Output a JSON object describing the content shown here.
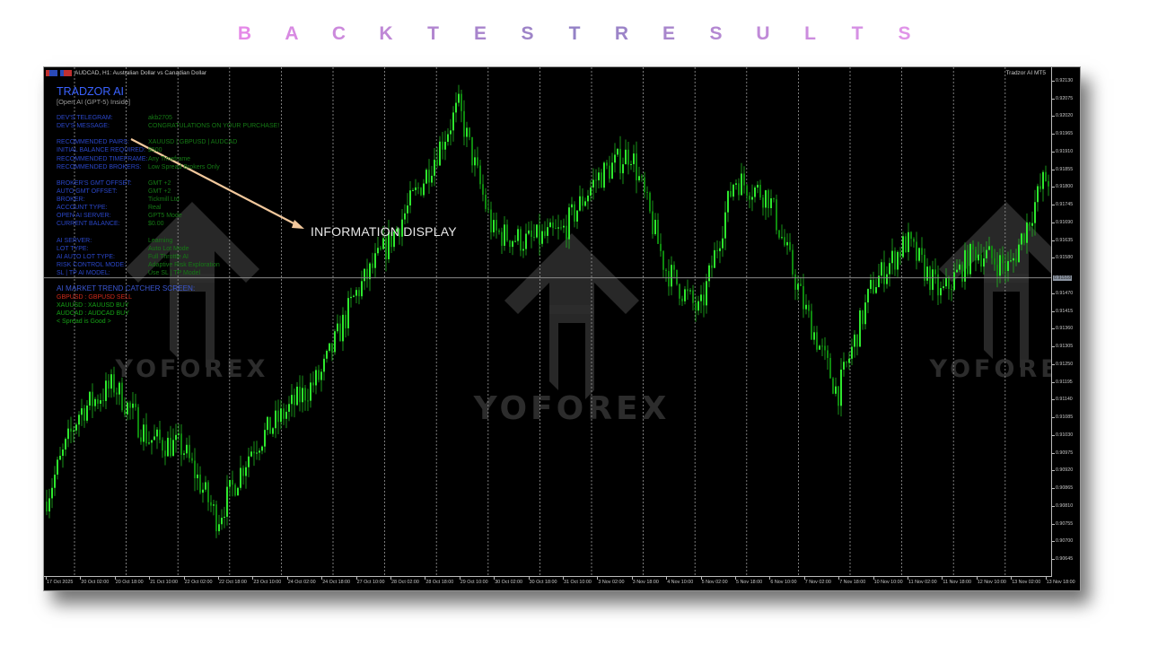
{
  "banner": {
    "letters": [
      "B",
      "A",
      "C",
      "K",
      "T",
      "E",
      "S",
      "T",
      "R",
      "E",
      "S",
      "U",
      "L",
      "T",
      "S"
    ],
    "colors": [
      "#e58ae8",
      "#d88ae2",
      "#cc8adc",
      "#bf88d6",
      "#b286d0",
      "#a884cc",
      "#9e84c8",
      "#9482c6",
      "#9c84c8",
      "#a886cc",
      "#b488d2",
      "#c08ad8",
      "#cc8cde",
      "#d690e4",
      "#e094e8"
    ]
  },
  "window": {
    "symbol_title": "AUDCAD, H1:  Australian Dollar vs Canadian Dollar",
    "ea_name": "Tradzor AI MT5"
  },
  "info_panel": {
    "title": "TRADZOR AI",
    "subtitle": "[Open AI (GPT-5) Inside]",
    "groups": [
      [
        {
          "k": "DEV'S TELEGRAM:",
          "v": "akb2705"
        },
        {
          "k": "DEV'S MESSAGE:",
          "v": "CONGRATULATIONS ON YOUR PURCHASE!"
        }
      ],
      [
        {
          "k": "RECOMMENDED PAIRS:",
          "v": "XAUUSD | GBPUSD | AUDCAD"
        },
        {
          "k": "INITIAL BALANCE REQUIRED:",
          "v": "$500"
        },
        {
          "k": "RECOMMENDED TIMEFRAME:",
          "v": "Any Timeframe"
        },
        {
          "k": "RECOMMENDED BROKERS:",
          "v": "Low Spread Brokers Only"
        }
      ],
      [
        {
          "k": "BROKER'S GMT OFFSET:",
          "v": "GMT +2"
        },
        {
          "k": "AUTO GMT OFFSET:",
          "v": "GMT +2"
        },
        {
          "k": "BROKER:",
          "v": "Tickmill Ltd"
        },
        {
          "k": "ACCOUNT TYPE:",
          "v": "Real"
        },
        {
          "k": "OPEN AI SERVER:",
          "v": "GPT5 Mode"
        },
        {
          "k": "CURRENT BALANCE:",
          "v": "$0.00"
        }
      ],
      [
        {
          "k": "AI SERVER:",
          "v": "Learning"
        },
        {
          "k": "LOT TYPE:",
          "v": "Auto Lot Mode"
        },
        {
          "k": "AI AUTO LOT TYPE:",
          "v": "Full Throttle AI"
        },
        {
          "k": "RISK CONTROL MODE:",
          "v": "Adaptive Risk Exploration"
        },
        {
          "k": "SL | TP AI MODEL:",
          "v": "Use SL | TP Model"
        }
      ]
    ],
    "trend_title": "AI MARKET TREND CATCHER SCREEN:",
    "trend_rows": [
      {
        "text": "GBPUSD : GBPUSD SELL",
        "color": "#d02a1a"
      },
      {
        "text": "XAUUSD : XAUUSD BUY",
        "color": "#16a016"
      },
      {
        "text": "AUDCAD : AUDCAD BUY",
        "color": "#16a016"
      },
      {
        "text": "< Spread is Good >",
        "color": "#16a016"
      }
    ]
  },
  "annotation": {
    "label": "INFORMATION DISPLAY",
    "arrow_color": "#f2c89c"
  },
  "watermark": {
    "text": "YOFOREX"
  },
  "chart_data": {
    "type": "candlestick",
    "symbol": "AUDCAD",
    "timeframe": "H1",
    "current_price": "0.91518",
    "bull_color": "#22e022",
    "grid": "vertical-dashed",
    "y_ticks": [
      "0.92130",
      "0.92075",
      "0.92020",
      "0.91965",
      "0.91910",
      "0.91855",
      "0.91800",
      "0.91745",
      "0.91690",
      "0.91635",
      "0.91580",
      "0.91470",
      "0.91415",
      "0.91360",
      "0.91305",
      "0.91250",
      "0.91195",
      "0.91140",
      "0.91085",
      "0.91030",
      "0.90975",
      "0.90920",
      "0.90865",
      "0.90810",
      "0.90755",
      "0.90700",
      "0.90645"
    ],
    "ylim": [
      0.9059,
      0.9216
    ],
    "x_ticks": [
      "17 Oct 2025",
      "20 Oct 02:00",
      "20 Oct 18:00",
      "21 Oct 10:00",
      "22 Oct 02:00",
      "22 Oct 18:00",
      "23 Oct 10:00",
      "24 Oct 02:00",
      "24 Oct 18:00",
      "27 Oct 10:00",
      "28 Oct 02:00",
      "28 Oct 18:00",
      "29 Oct 10:00",
      "30 Oct 02:00",
      "30 Oct 18:00",
      "31 Oct 10:00",
      "3 Nov 02:00",
      "3 Nov 18:00",
      "4 Nov 10:00",
      "5 Nov 02:00",
      "5 Nov 18:00",
      "6 Nov 10:00",
      "7 Nov 02:00",
      "7 Nov 18:00",
      "10 Nov 10:00",
      "11 Nov 02:00",
      "11 Nov 18:00",
      "12 Nov 10:00",
      "13 Nov 02:00",
      "13 Nov 18:00"
    ],
    "approx_price_at_ticks": [
      0.90823,
      0.91102,
      0.91185,
      0.91018,
      0.9099,
      0.90768,
      0.9099,
      0.91102,
      0.91213,
      0.91464,
      0.91631,
      0.91826,
      0.92049,
      0.91659,
      0.91631,
      0.91659,
      0.91826,
      0.9191,
      0.91548,
      0.91408,
      0.91826,
      0.91771,
      0.91436,
      0.91158,
      0.91492,
      0.91631,
      0.91464,
      0.91603,
      0.91548,
      0.91826
    ]
  }
}
